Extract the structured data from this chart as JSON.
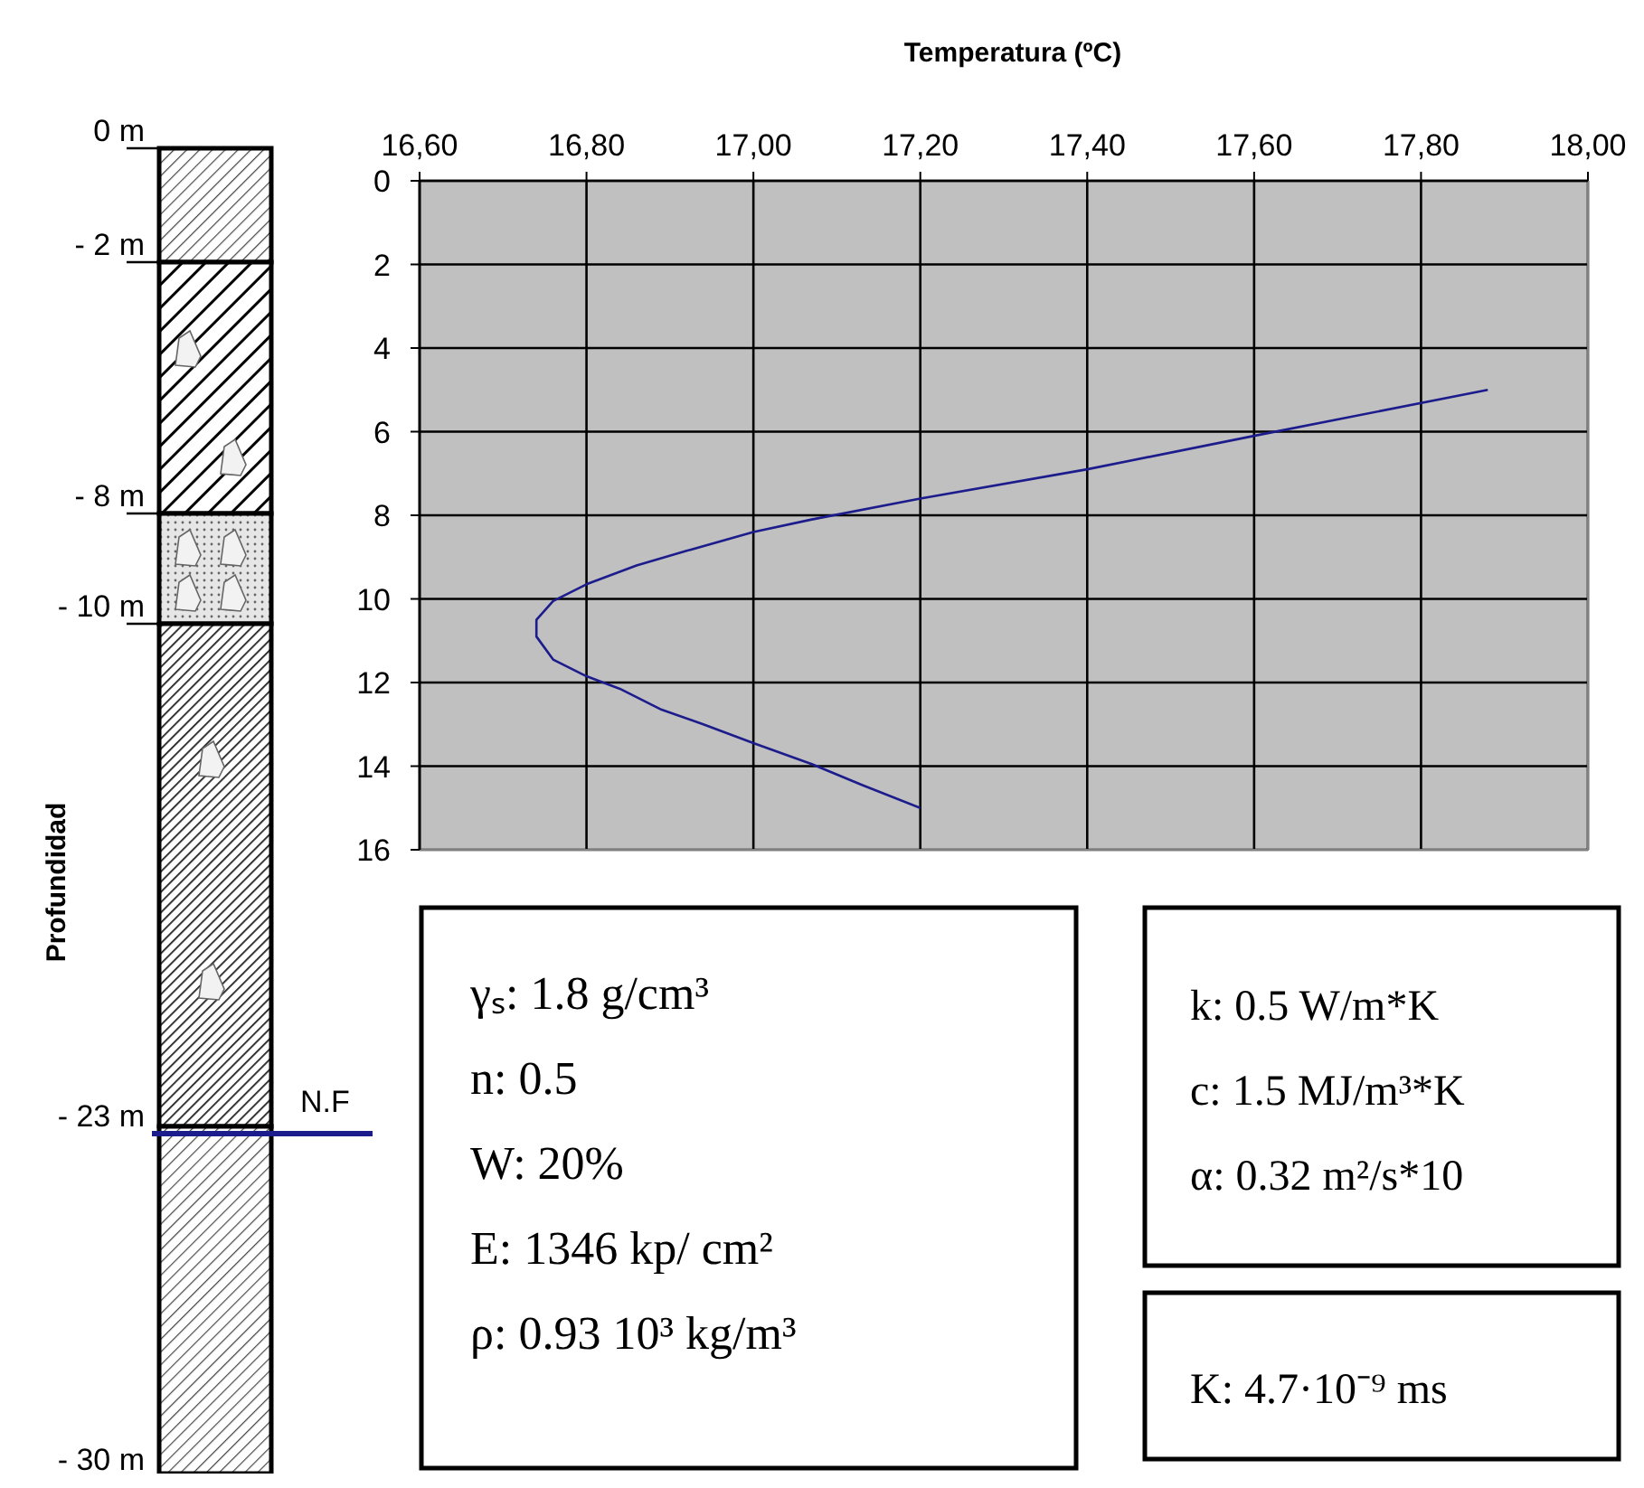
{
  "chart_data": {
    "type": "line",
    "xlabel": "Temperatura (ºC)",
    "xlim": [
      16.6,
      18.0
    ],
    "xticks": [
      {
        "value": 16.6,
        "label": "16,60"
      },
      {
        "value": 16.8,
        "label": "16,80"
      },
      {
        "value": 17.0,
        "label": "17,00"
      },
      {
        "value": 17.2,
        "label": "17,20"
      },
      {
        "value": 17.4,
        "label": "17,40"
      },
      {
        "value": 17.6,
        "label": "17,60"
      },
      {
        "value": 17.8,
        "label": "17,80"
      },
      {
        "value": 18.0,
        "label": "18,00"
      }
    ],
    "ylim": [
      16,
      0
    ],
    "yticks": [
      0,
      2,
      4,
      6,
      8,
      10,
      12,
      14,
      16
    ],
    "grid": true,
    "marker": "none",
    "line_style": "solid",
    "series": [
      {
        "color": "#1c1c8c",
        "x": [
          17.88,
          17.6,
          17.4,
          17.2,
          17.07,
          17.0,
          16.92,
          16.86,
          16.8,
          16.76,
          16.74,
          16.74,
          16.76,
          16.8,
          16.84,
          16.89,
          16.94,
          17.0,
          17.07,
          17.13,
          17.2
        ],
        "values": [
          5.0,
          6.1,
          6.9,
          7.6,
          8.1,
          8.4,
          8.85,
          9.2,
          9.65,
          10.05,
          10.5,
          10.9,
          11.45,
          11.85,
          12.15,
          12.65,
          13.0,
          13.45,
          13.95,
          14.45,
          15.0
        ]
      }
    ],
    "annotations": [
      "0 m",
      "- 2 m",
      "- 8 m",
      "- 10 m",
      "- 23 m",
      "- 30 m",
      "Profundidad",
      "N.F",
      "γₛ: 1.8 g/cm³",
      "n: 0.5",
      "W: 20%",
      "E: 1346 kp/ cm²",
      "ρ: 0.93 10³ kg/m³",
      "k: 0.5 W/m*K",
      "c: 1.5 MJ/m³*K",
      "α: 0.32 m²/s*10",
      "K: 4.7·10⁻⁹ ms"
    ]
  }
}
